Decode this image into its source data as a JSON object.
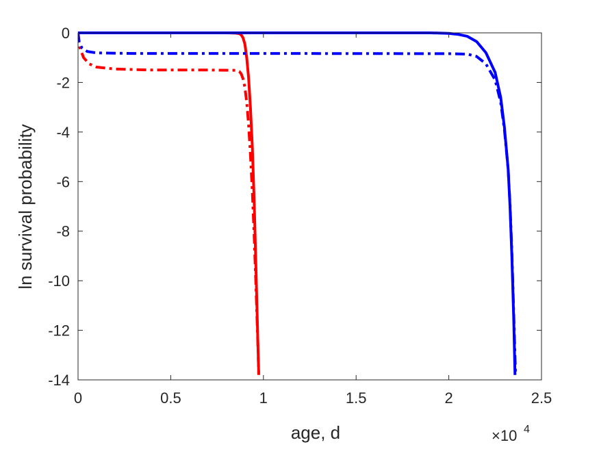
{
  "chart_data": {
    "type": "line",
    "title": "",
    "xlabel": "age, d",
    "ylabel": "ln survival probability",
    "x_multiplier_label": "×10",
    "x_multiplier_exp": "4",
    "xlim": [
      0,
      2.5
    ],
    "ylim": [
      -14,
      0
    ],
    "x_unit_scale": 10000,
    "xticks": [
      0,
      0.5,
      1,
      1.5,
      2,
      2.5
    ],
    "xtick_labels": [
      "0",
      "0.5",
      "1",
      "1.5",
      "2",
      "2.5"
    ],
    "yticks": [
      0,
      -2,
      -4,
      -6,
      -8,
      -10,
      -12,
      -14
    ],
    "ytick_labels": [
      "0",
      "-2",
      "-4",
      "-6",
      "-8",
      "-10",
      "-12",
      "-14"
    ],
    "grid": false,
    "legend": "none",
    "series": [
      {
        "color": "#ff0000",
        "style": "solid",
        "points": [
          [
            0,
            0
          ],
          [
            0.4,
            0
          ],
          [
            0.8,
            0
          ],
          [
            0.85,
            -0.01
          ],
          [
            0.87,
            -0.03
          ],
          [
            0.88,
            -0.08
          ],
          [
            0.89,
            -0.2
          ],
          [
            0.9,
            -0.45
          ],
          [
            0.91,
            -1.0
          ],
          [
            0.92,
            -1.8
          ],
          [
            0.93,
            -3.0
          ],
          [
            0.94,
            -4.6
          ],
          [
            0.95,
            -6.8
          ],
          [
            0.96,
            -9.6
          ],
          [
            0.97,
            -12.5
          ],
          [
            0.975,
            -13.8
          ]
        ]
      },
      {
        "color": "#ff0000",
        "style": "dashdot",
        "points": [
          [
            0,
            0
          ],
          [
            0.01,
            -0.6
          ],
          [
            0.03,
            -1.0
          ],
          [
            0.06,
            -1.25
          ],
          [
            0.1,
            -1.38
          ],
          [
            0.2,
            -1.46
          ],
          [
            0.4,
            -1.5
          ],
          [
            0.7,
            -1.5
          ],
          [
            0.85,
            -1.51
          ],
          [
            0.87,
            -1.56
          ],
          [
            0.88,
            -1.65
          ],
          [
            0.89,
            -1.85
          ],
          [
            0.9,
            -2.2
          ],
          [
            0.91,
            -2.8
          ],
          [
            0.92,
            -3.7
          ],
          [
            0.93,
            -4.9
          ],
          [
            0.94,
            -6.4
          ],
          [
            0.95,
            -8.2
          ],
          [
            0.96,
            -10.3
          ],
          [
            0.97,
            -12.6
          ],
          [
            0.975,
            -13.8
          ]
        ]
      },
      {
        "color": "#0000ff",
        "style": "solid",
        "points": [
          [
            0,
            0
          ],
          [
            1,
            0
          ],
          [
            1.9,
            0
          ],
          [
            2.0,
            -0.02
          ],
          [
            2.05,
            -0.06
          ],
          [
            2.1,
            -0.14
          ],
          [
            2.15,
            -0.35
          ],
          [
            2.2,
            -0.8
          ],
          [
            2.25,
            -1.6
          ],
          [
            2.28,
            -2.6
          ],
          [
            2.3,
            -3.8
          ],
          [
            2.32,
            -5.5
          ],
          [
            2.33,
            -7.0
          ],
          [
            2.34,
            -9.0
          ],
          [
            2.35,
            -11.5
          ],
          [
            2.357,
            -13.8
          ]
        ]
      },
      {
        "color": "#0000ff",
        "style": "dashdot",
        "points": [
          [
            0,
            0
          ],
          [
            0.005,
            -0.35
          ],
          [
            0.02,
            -0.6
          ],
          [
            0.05,
            -0.75
          ],
          [
            0.1,
            -0.81
          ],
          [
            0.3,
            -0.83
          ],
          [
            1.0,
            -0.83
          ],
          [
            2.0,
            -0.84
          ],
          [
            2.1,
            -0.86
          ],
          [
            2.15,
            -0.95
          ],
          [
            2.2,
            -1.25
          ],
          [
            2.25,
            -1.9
          ],
          [
            2.28,
            -2.8
          ],
          [
            2.3,
            -3.9
          ],
          [
            2.32,
            -5.5
          ],
          [
            2.33,
            -6.9
          ],
          [
            2.34,
            -8.8
          ],
          [
            2.35,
            -11.3
          ],
          [
            2.36,
            -13.8
          ]
        ]
      }
    ]
  }
}
